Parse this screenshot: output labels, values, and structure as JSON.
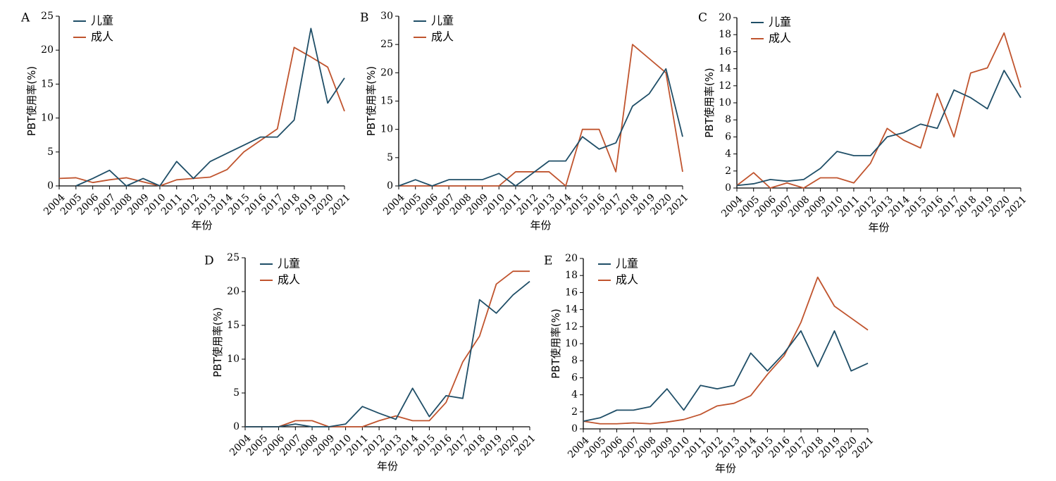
{
  "colors": {
    "children": "#1f4e67",
    "adults": "#c0542e"
  },
  "legend": {
    "children": "儿童",
    "adults": "成人"
  },
  "xlabel": "年份",
  "ylabel": "PBT使用率(%)",
  "years": [
    "2004",
    "2005",
    "2006",
    "2007",
    "2008",
    "2009",
    "2010",
    "2011",
    "2012",
    "2013",
    "2014",
    "2015",
    "2016",
    "2017",
    "2018",
    "2019",
    "2020",
    "2021"
  ],
  "chart_data": [
    {
      "type": "line",
      "label": "A",
      "xlabel": "年份",
      "ylabel": "PBT使用率(%)",
      "ylim": [
        0,
        25
      ],
      "yticks": [
        0,
        5,
        10,
        15,
        20,
        25
      ],
      "x": [
        "2004",
        "2005",
        "2006",
        "2007",
        "2008",
        "2009",
        "2010",
        "2011",
        "2012",
        "2013",
        "2014",
        "2015",
        "2016",
        "2017",
        "2018",
        "2019",
        "2020",
        "2021"
      ],
      "series": [
        {
          "name": "儿童",
          "values": [
            null,
            0,
            1.1,
            2.3,
            0,
            1.1,
            0,
            3.6,
            1.1,
            3.6,
            4.8,
            6.0,
            7.2,
            7.2,
            9.7,
            23.2,
            12.2,
            15.9
          ]
        },
        {
          "name": "成人",
          "values": [
            1.1,
            1.2,
            0.5,
            0.9,
            1.2,
            0.6,
            0,
            0.9,
            1.1,
            1.3,
            2.4,
            5.0,
            6.7,
            8.4,
            20.4,
            19.0,
            17.5,
            11.0
          ]
        }
      ]
    },
    {
      "type": "line",
      "label": "B",
      "xlabel": "年份",
      "ylabel": "PBT使用率(%)",
      "ylim": [
        0,
        30
      ],
      "yticks": [
        0,
        5,
        10,
        15,
        20,
        25,
        30
      ],
      "x": [
        "2004",
        "2005",
        "2006",
        "2007",
        "2008",
        "2009",
        "2010",
        "2011",
        "2012",
        "2013",
        "2014",
        "2015",
        "2016",
        "2017",
        "2018",
        "2019",
        "2020",
        "2021"
      ],
      "series": [
        {
          "name": "儿童",
          "values": [
            0,
            1.1,
            0,
            1.1,
            1.1,
            1.1,
            2.2,
            0,
            2.2,
            4.4,
            4.4,
            8.7,
            6.5,
            7.6,
            14.1,
            16.3,
            20.7,
            8.7
          ]
        },
        {
          "name": "成人",
          "values": [
            0,
            0,
            0,
            0,
            0,
            0,
            0,
            2.5,
            2.5,
            2.5,
            0,
            10.0,
            10.0,
            2.5,
            25.0,
            22.5,
            20.0,
            2.5
          ]
        }
      ]
    },
    {
      "type": "line",
      "label": "C",
      "xlabel": "年份",
      "ylabel": "PBT使用率(%)",
      "ylim": [
        0,
        20
      ],
      "yticks": [
        0,
        2,
        4,
        6,
        8,
        10,
        12,
        14,
        16,
        18,
        20
      ],
      "x": [
        "2004",
        "2005",
        "2006",
        "2007",
        "2008",
        "2009",
        "2010",
        "2011",
        "2012",
        "2013",
        "2014",
        "2015",
        "2016",
        "2017",
        "2018",
        "2019",
        "2020",
        "2021"
      ],
      "series": [
        {
          "name": "儿童",
          "values": [
            0.3,
            0.5,
            1.0,
            0.8,
            1.0,
            2.3,
            4.3,
            3.8,
            3.8,
            6.0,
            6.5,
            7.5,
            7.0,
            11.5,
            10.6,
            9.3,
            13.8,
            10.6
          ]
        },
        {
          "name": "成人",
          "values": [
            0.3,
            1.8,
            0,
            0.6,
            0,
            1.2,
            1.2,
            0.6,
            2.9,
            7.0,
            5.6,
            4.7,
            11.1,
            6.0,
            13.5,
            14.1,
            18.2,
            11.8
          ]
        }
      ]
    },
    {
      "type": "line",
      "label": "D",
      "xlabel": "年份",
      "ylabel": "PBT使用率(%)",
      "ylim": [
        0,
        25
      ],
      "yticks": [
        0,
        5,
        10,
        15,
        20,
        25
      ],
      "x": [
        "2004",
        "2005",
        "2006",
        "2007",
        "2008",
        "2009",
        "2010",
        "2011",
        "2012",
        "2013",
        "2014",
        "2015",
        "2016",
        "2017",
        "2018",
        "2019",
        "2020",
        "2021"
      ],
      "series": [
        {
          "name": "儿童",
          "values": [
            0,
            0,
            0,
            0.4,
            0,
            0,
            0.4,
            3.0,
            2.0,
            1.1,
            5.7,
            1.5,
            4.6,
            4.2,
            18.8,
            16.8,
            19.5,
            21.5
          ]
        },
        {
          "name": "成人",
          "values": [
            0,
            0,
            0,
            0.9,
            0.9,
            0,
            0,
            0,
            0.9,
            1.6,
            0.9,
            0.9,
            3.6,
            9.6,
            13.4,
            21.1,
            23.0,
            23.0
          ]
        }
      ]
    },
    {
      "type": "line",
      "label": "E",
      "xlabel": "年份",
      "ylabel": "PBT使用率(%)",
      "ylim": [
        0,
        20
      ],
      "yticks": [
        0,
        2,
        4,
        6,
        8,
        10,
        12,
        14,
        16,
        18,
        20
      ],
      "x": [
        "2004",
        "2005",
        "2006",
        "2007",
        "2008",
        "2009",
        "2010",
        "2011",
        "2012",
        "2013",
        "2014",
        "2015",
        "2016",
        "2017",
        "2018",
        "2019",
        "2020",
        "2021"
      ],
      "series": [
        {
          "name": "儿童",
          "values": [
            0.9,
            1.3,
            2.2,
            2.2,
            2.6,
            4.7,
            2.2,
            5.1,
            4.7,
            5.1,
            8.9,
            6.8,
            8.9,
            11.5,
            7.3,
            11.5,
            6.8,
            7.7
          ]
        },
        {
          "name": "成人",
          "values": [
            0.9,
            0.6,
            0.6,
            0.7,
            0.6,
            0.8,
            1.1,
            1.7,
            2.7,
            3.0,
            3.9,
            6.4,
            8.6,
            12.5,
            17.8,
            14.4,
            13.0,
            11.6
          ]
        }
      ]
    }
  ]
}
